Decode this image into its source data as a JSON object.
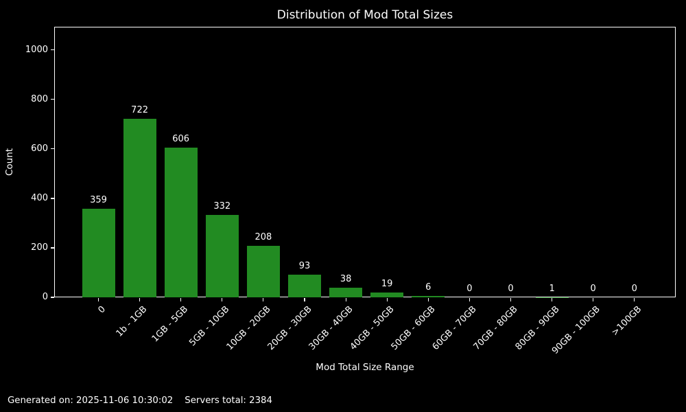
{
  "footer": {
    "generated_text": "Generated on: 2025-11-06 10:30:02",
    "servers_text": "Servers total: 2384"
  },
  "chart_data": {
    "type": "bar",
    "title": "Distribution of Mod Total Sizes",
    "xlabel": "Mod Total Size Range",
    "ylabel": "Count",
    "categories": [
      "0",
      "1b - 1GB",
      "1GB - 5GB",
      "5GB - 10GB",
      "10GB - 20GB",
      "20GB - 30GB",
      "30GB - 40GB",
      "40GB - 50GB",
      "50GB - 60GB",
      "60GB - 70GB",
      "70GB - 80GB",
      "80GB - 90GB",
      "90GB - 100GB",
      ">100GB"
    ],
    "values": [
      359,
      722,
      606,
      332,
      208,
      93,
      38,
      19,
      6,
      0,
      0,
      1,
      0,
      0
    ],
    "yticks": [
      0,
      200,
      400,
      600,
      800,
      1000
    ],
    "ylim": [
      0,
      1094
    ],
    "bar_color": "#228B22",
    "background_color": "#000000",
    "text_color": "#ffffff",
    "grid": false,
    "legend": null,
    "xtick_rotation_deg": 45
  }
}
